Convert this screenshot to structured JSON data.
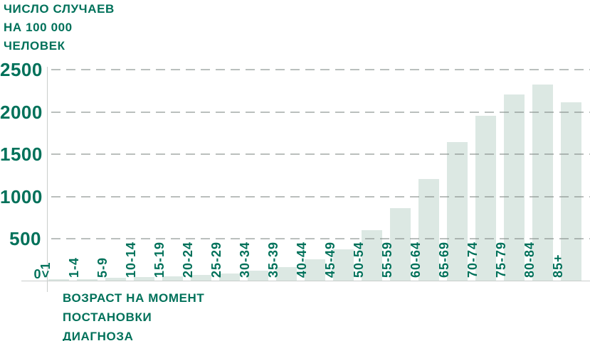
{
  "chart_data": {
    "type": "bar",
    "title": "ЧИСЛО СЛУЧАЕВ\nНА 100 000\nЧЕЛОВЕК",
    "xlabel": "ВОЗРАСТ НА МОМЕНТ\nПОСТАНОВКИ\nДИАГНОЗА",
    "categories": [
      "<1",
      "1-4",
      "5-9",
      "10-14",
      "15-19",
      "20-24",
      "25-29",
      "30-34",
      "35-39",
      "40-44",
      "45-49",
      "50-54",
      "55-59",
      "60-64",
      "65-69",
      "70-74",
      "75-79",
      "80-84",
      "85+"
    ],
    "values": [
      17,
      25,
      34,
      45,
      55,
      73,
      90,
      125,
      160,
      255,
      375,
      600,
      860,
      1210,
      1640,
      1955,
      2210,
      2325,
      2115
    ],
    "yticks": [
      0,
      500,
      1000,
      1500,
      2000,
      2500
    ],
    "ylim": [
      0,
      2500
    ],
    "grid": "horizontal-dashed",
    "legend": "none",
    "colors": {
      "text": "#00715A",
      "bar": "#dce8e3",
      "gridline": "#c4c4c4",
      "axis": "#c9cdcb"
    }
  }
}
